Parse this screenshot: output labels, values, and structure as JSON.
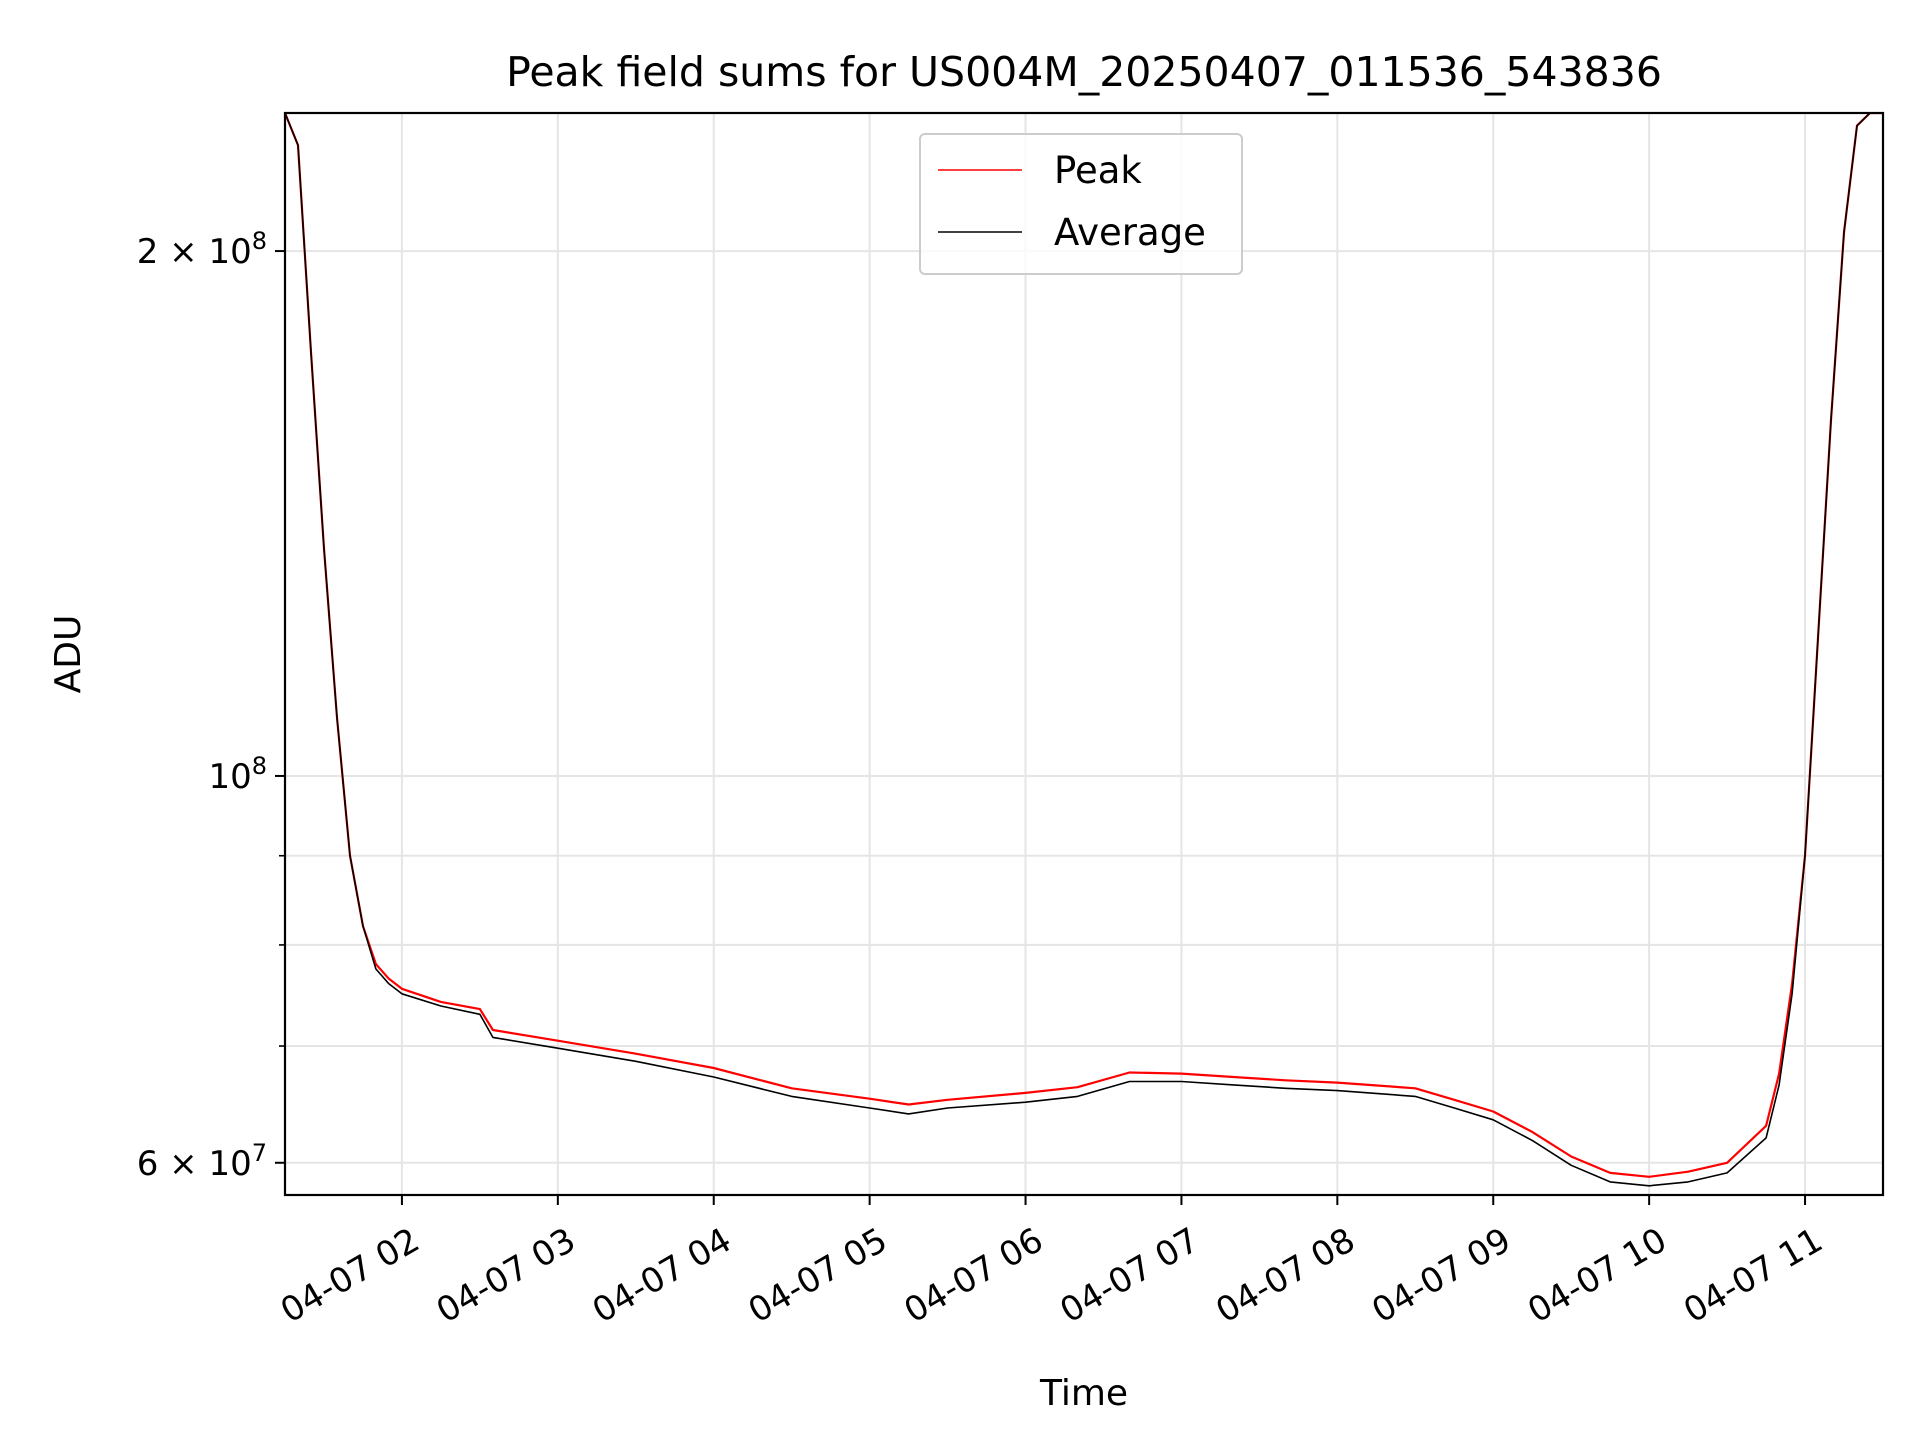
{
  "chart_data": {
    "type": "line",
    "title": "Peak field sums for US004M_20250407_011536_543836",
    "xlabel": "Time",
    "ylabel": "ADU",
    "xlim": [
      "2025-04-07 01:15",
      "2025-04-07 11:30"
    ],
    "ylim": [
      57500000,
      240000000
    ],
    "yscale": "log",
    "grid": true,
    "legend_position": "upper center",
    "x_ticks": [
      "04-07 02",
      "04-07 03",
      "04-07 04",
      "04-07 05",
      "04-07 06",
      "04-07 07",
      "04-07 08",
      "04-07 09",
      "04-07 10",
      "04-07 11"
    ],
    "y_ticks": [
      {
        "value": 200000000,
        "mantissa": "2",
        "exponent": "8"
      },
      {
        "value": 100000000,
        "mantissa": "",
        "exponent": "8"
      },
      {
        "value": 60000000,
        "mantissa": "6",
        "exponent": "7"
      }
    ],
    "series": [
      {
        "name": "Peak",
        "color": "#ff0000",
        "x": [
          "2025-04-07 01:15",
          "2025-04-07 01:20",
          "2025-04-07 01:25",
          "2025-04-07 01:30",
          "2025-04-07 01:35",
          "2025-04-07 01:40",
          "2025-04-07 01:45",
          "2025-04-07 01:50",
          "2025-04-07 01:55",
          "2025-04-07 02:00",
          "2025-04-07 02:15",
          "2025-04-07 02:30",
          "2025-04-07 02:35",
          "2025-04-07 03:00",
          "2025-04-07 03:30",
          "2025-04-07 04:00",
          "2025-04-07 04:30",
          "2025-04-07 05:00",
          "2025-04-07 05:15",
          "2025-04-07 05:30",
          "2025-04-07 06:00",
          "2025-04-07 06:20",
          "2025-04-07 06:40",
          "2025-04-07 07:00",
          "2025-04-07 07:20",
          "2025-04-07 07:40",
          "2025-04-07 08:00",
          "2025-04-07 08:30",
          "2025-04-07 08:45",
          "2025-04-07 09:00",
          "2025-04-07 09:15",
          "2025-04-07 09:30",
          "2025-04-07 09:45",
          "2025-04-07 10:00",
          "2025-04-07 10:15",
          "2025-04-07 10:30",
          "2025-04-07 10:45",
          "2025-04-07 10:50",
          "2025-04-07 10:55",
          "2025-04-07 11:00",
          "2025-04-07 11:05",
          "2025-04-07 11:10",
          "2025-04-07 11:15",
          "2025-04-07 11:20",
          "2025-04-07 11:25",
          "2025-04-07 11:30"
        ],
        "y": [
          240000000,
          230000000,
          175000000,
          135000000,
          108000000,
          90000000,
          82000000,
          78000000,
          76500000,
          75500000,
          74200000,
          73500000,
          71500000,
          70500000,
          69300000,
          68000000,
          66200000,
          65300000,
          64800000,
          65200000,
          65800000,
          66300000,
          67600000,
          67500000,
          67200000,
          66900000,
          66700000,
          66200000,
          65200000,
          64200000,
          62500000,
          60500000,
          59200000,
          58900000,
          59300000,
          60000000,
          63000000,
          67500000,
          76000000,
          90000000,
          120000000,
          160000000,
          205000000,
          236000000,
          240000000,
          240000000
        ]
      },
      {
        "name": "Average",
        "color": "#000000",
        "x": [
          "2025-04-07 01:15",
          "2025-04-07 01:20",
          "2025-04-07 01:25",
          "2025-04-07 01:30",
          "2025-04-07 01:35",
          "2025-04-07 01:40",
          "2025-04-07 01:45",
          "2025-04-07 01:50",
          "2025-04-07 01:55",
          "2025-04-07 02:00",
          "2025-04-07 02:15",
          "2025-04-07 02:30",
          "2025-04-07 02:35",
          "2025-04-07 03:00",
          "2025-04-07 03:30",
          "2025-04-07 04:00",
          "2025-04-07 04:30",
          "2025-04-07 05:00",
          "2025-04-07 05:15",
          "2025-04-07 05:30",
          "2025-04-07 06:00",
          "2025-04-07 06:20",
          "2025-04-07 06:40",
          "2025-04-07 07:00",
          "2025-04-07 07:20",
          "2025-04-07 07:40",
          "2025-04-07 08:00",
          "2025-04-07 08:30",
          "2025-04-07 08:45",
          "2025-04-07 09:00",
          "2025-04-07 09:15",
          "2025-04-07 09:30",
          "2025-04-07 09:45",
          "2025-04-07 10:00",
          "2025-04-07 10:15",
          "2025-04-07 10:30",
          "2025-04-07 10:45",
          "2025-04-07 10:50",
          "2025-04-07 10:55",
          "2025-04-07 11:00",
          "2025-04-07 11:05",
          "2025-04-07 11:10",
          "2025-04-07 11:15",
          "2025-04-07 11:20",
          "2025-04-07 11:25",
          "2025-04-07 11:30"
        ],
        "y": [
          240000000,
          230000000,
          175000000,
          135000000,
          108000000,
          90000000,
          82000000,
          77500000,
          76000000,
          75000000,
          73800000,
          73000000,
          70800000,
          69800000,
          68600000,
          67200000,
          65500000,
          64500000,
          64000000,
          64500000,
          65000000,
          65500000,
          66800000,
          66800000,
          66500000,
          66200000,
          66000000,
          65500000,
          64500000,
          63500000,
          61800000,
          59800000,
          58500000,
          58200000,
          58500000,
          59200000,
          62000000,
          66500000,
          75000000,
          90000000,
          120000000,
          160000000,
          205000000,
          236000000,
          240000000,
          240000000
        ]
      }
    ]
  }
}
